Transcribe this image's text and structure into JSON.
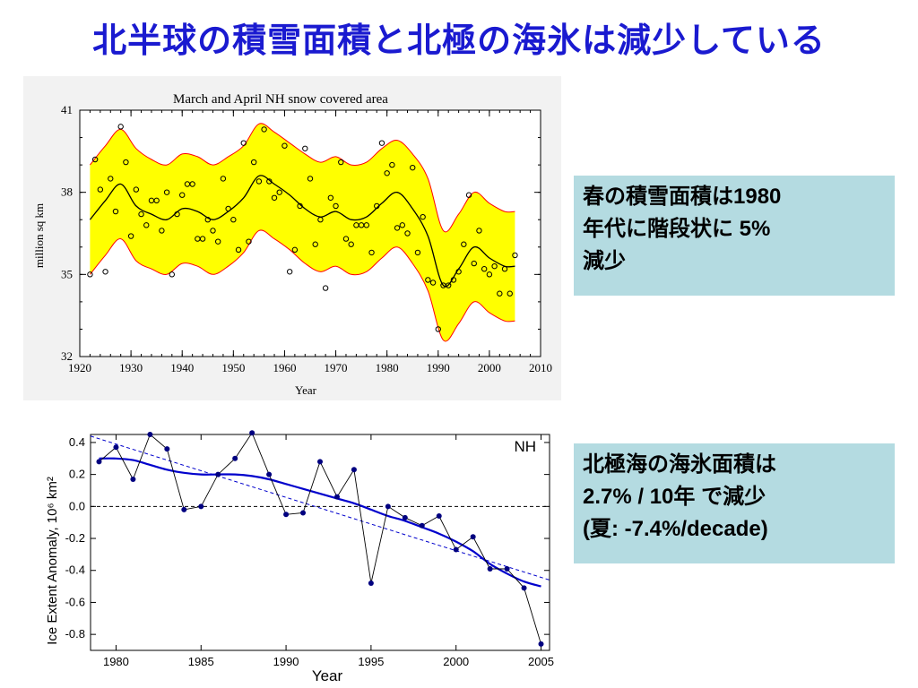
{
  "slide": {
    "title": "北半球の積雪面積と北極の海氷は減少している"
  },
  "notes": {
    "snow": [
      "春の積雪面積は1980",
      "年代に階段状に 5%",
      "減少"
    ],
    "ice": [
      "北極海の海氷面積は",
      "2.7% / 10年 で減少",
      "(夏:  -7.4%/decade)"
    ]
  },
  "colors": {
    "title": "#1a1ad0",
    "band_fill": "#ffff00",
    "band_edge": "#ff0000",
    "ice_line": "#0000cc",
    "ice_points": "#000080",
    "note_bg": "#b4dbe1"
  },
  "chart_data": [
    {
      "type": "scatter",
      "title": "March and April NH snow covered area",
      "xlabel": "Year",
      "ylabel": "million sq km",
      "xlim": [
        1920,
        2010
      ],
      "ylim": [
        32,
        41
      ],
      "xticks": [
        1920,
        1930,
        1940,
        1950,
        1960,
        1970,
        1980,
        1990,
        2000,
        2010
      ],
      "yticks": [
        32,
        35,
        38,
        41
      ],
      "x": [
        1922,
        1923,
        1924,
        1925,
        1926,
        1927,
        1928,
        1929,
        1930,
        1931,
        1932,
        1933,
        1934,
        1935,
        1936,
        1937,
        1938,
        1939,
        1940,
        1941,
        1942,
        1943,
        1944,
        1945,
        1946,
        1947,
        1948,
        1949,
        1950,
        1951,
        1952,
        1953,
        1954,
        1955,
        1956,
        1957,
        1958,
        1959,
        1960,
        1961,
        1962,
        1963,
        1964,
        1965,
        1966,
        1967,
        1968,
        1969,
        1970,
        1971,
        1972,
        1973,
        1974,
        1975,
        1976,
        1977,
        1978,
        1979,
        1980,
        1981,
        1982,
        1983,
        1984,
        1985,
        1986,
        1987,
        1988,
        1989,
        1990,
        1991,
        1992,
        1993,
        1994,
        1995,
        1996,
        1997,
        1998,
        1999,
        2000,
        2001,
        2002,
        2003,
        2004,
        2005
      ],
      "y": [
        35.0,
        39.2,
        38.1,
        35.1,
        38.5,
        37.3,
        40.4,
        39.1,
        36.4,
        38.1,
        37.2,
        36.8,
        37.7,
        37.7,
        36.6,
        38.0,
        35.0,
        37.2,
        37.9,
        38.3,
        38.3,
        36.3,
        36.3,
        37.0,
        36.6,
        36.2,
        38.5,
        37.4,
        37.0,
        35.9,
        39.8,
        36.2,
        39.1,
        38.4,
        40.3,
        38.4,
        37.8,
        38.0,
        39.7,
        35.1,
        35.9,
        37.5,
        39.6,
        38.5,
        36.1,
        37.0,
        34.5,
        37.8,
        37.5,
        39.1,
        36.3,
        36.1,
        36.8,
        36.8,
        36.8,
        35.8,
        37.5,
        39.8,
        38.7,
        39.0,
        36.7,
        36.8,
        36.5,
        38.9,
        35.8,
        37.1,
        34.8,
        34.7,
        33.0,
        34.6,
        34.6,
        34.8,
        35.1,
        36.1,
        37.9,
        35.4,
        36.6,
        35.2,
        35.0,
        35.3,
        34.3,
        35.2,
        34.3,
        35.7
      ],
      "smooth": {
        "x": [
          1922,
          1925,
          1928,
          1931,
          1934,
          1937,
          1940,
          1943,
          1946,
          1949,
          1952,
          1955,
          1958,
          1961,
          1964,
          1967,
          1970,
          1973,
          1976,
          1979,
          1982,
          1985,
          1988,
          1991,
          1994,
          1997,
          2000,
          2003,
          2005
        ],
        "y": [
          37.0,
          37.7,
          38.3,
          37.5,
          37.2,
          37.0,
          37.4,
          37.3,
          37.0,
          37.3,
          37.8,
          38.6,
          38.3,
          37.9,
          37.4,
          37.1,
          37.3,
          37.0,
          37.1,
          37.6,
          38.0,
          37.4,
          36.4,
          34.6,
          35.2,
          36.0,
          35.6,
          35.3,
          35.3
        ]
      },
      "band": {
        "x": [
          1922,
          1925,
          1928,
          1931,
          1934,
          1937,
          1940,
          1943,
          1946,
          1949,
          1952,
          1955,
          1958,
          1961,
          1964,
          1967,
          1970,
          1973,
          1976,
          1979,
          1982,
          1985,
          1988,
          1991,
          1994,
          1997,
          2000,
          2003,
          2005
        ],
        "upper": [
          39.0,
          39.7,
          40.3,
          39.6,
          39.2,
          39.0,
          39.4,
          39.3,
          39.0,
          39.3,
          39.7,
          40.5,
          40.2,
          39.8,
          39.4,
          39.1,
          39.3,
          39.0,
          39.1,
          39.6,
          39.9,
          39.4,
          38.5,
          36.6,
          37.2,
          38.0,
          37.6,
          37.3,
          37.3
        ],
        "lower": [
          35.0,
          35.7,
          36.3,
          35.5,
          35.2,
          35.0,
          35.4,
          35.3,
          35.0,
          35.3,
          35.8,
          36.6,
          36.3,
          35.9,
          35.4,
          35.1,
          35.3,
          35.0,
          35.1,
          35.6,
          36.0,
          35.4,
          34.4,
          32.6,
          33.2,
          34.0,
          33.6,
          33.3,
          33.3
        ]
      }
    },
    {
      "type": "line",
      "series_label": "NH",
      "xlabel": "Year",
      "ylabel": "Ice Extent Anomaly, 10⁶ km²",
      "xlim": [
        1978.5,
        2005.5
      ],
      "ylim": [
        -0.9,
        0.45
      ],
      "xticks": [
        1980,
        1985,
        1990,
        1995,
        2000,
        2005
      ],
      "yticks": [
        0.4,
        0.2,
        0.0,
        -0.2,
        -0.4,
        -0.6,
        -0.8
      ],
      "ytick_labels": [
        "0.4",
        "0.2",
        "0.0",
        "-0.2",
        "-0.4",
        "-0.6",
        "-0.8"
      ],
      "x": [
        1979,
        1980,
        1981,
        1982,
        1983,
        1984,
        1985,
        1986,
        1987,
        1988,
        1989,
        1990,
        1991,
        1992,
        1993,
        1994,
        1995,
        1996,
        1997,
        1998,
        1999,
        2000,
        2001,
        2002,
        2003,
        2004,
        2005
      ],
      "y": [
        0.28,
        0.37,
        0.17,
        0.45,
        0.36,
        -0.02,
        0.0,
        0.2,
        0.3,
        0.46,
        0.2,
        -0.05,
        -0.04,
        0.28,
        0.06,
        0.23,
        -0.48,
        0.0,
        -0.07,
        -0.12,
        -0.06,
        -0.27,
        -0.19,
        -0.39,
        -0.39,
        -0.51,
        -0.86
      ],
      "smooth": {
        "x": [
          1979,
          1980,
          1981,
          1982,
          1983,
          1984,
          1985,
          1986,
          1987,
          1988,
          1989,
          1990,
          1991,
          1992,
          1993,
          1994,
          1995,
          1996,
          1997,
          1998,
          1999,
          2000,
          2001,
          2002,
          2003,
          2004,
          2005
        ],
        "y": [
          0.3,
          0.3,
          0.29,
          0.26,
          0.23,
          0.21,
          0.2,
          0.2,
          0.2,
          0.19,
          0.17,
          0.14,
          0.11,
          0.08,
          0.05,
          0.02,
          -0.02,
          -0.06,
          -0.09,
          -0.13,
          -0.17,
          -0.22,
          -0.28,
          -0.36,
          -0.42,
          -0.47,
          -0.5
        ]
      },
      "trend": {
        "x": [
          1978.5,
          2005.5
        ],
        "y": [
          0.44,
          -0.46
        ]
      },
      "zero_line": 0.0
    }
  ]
}
